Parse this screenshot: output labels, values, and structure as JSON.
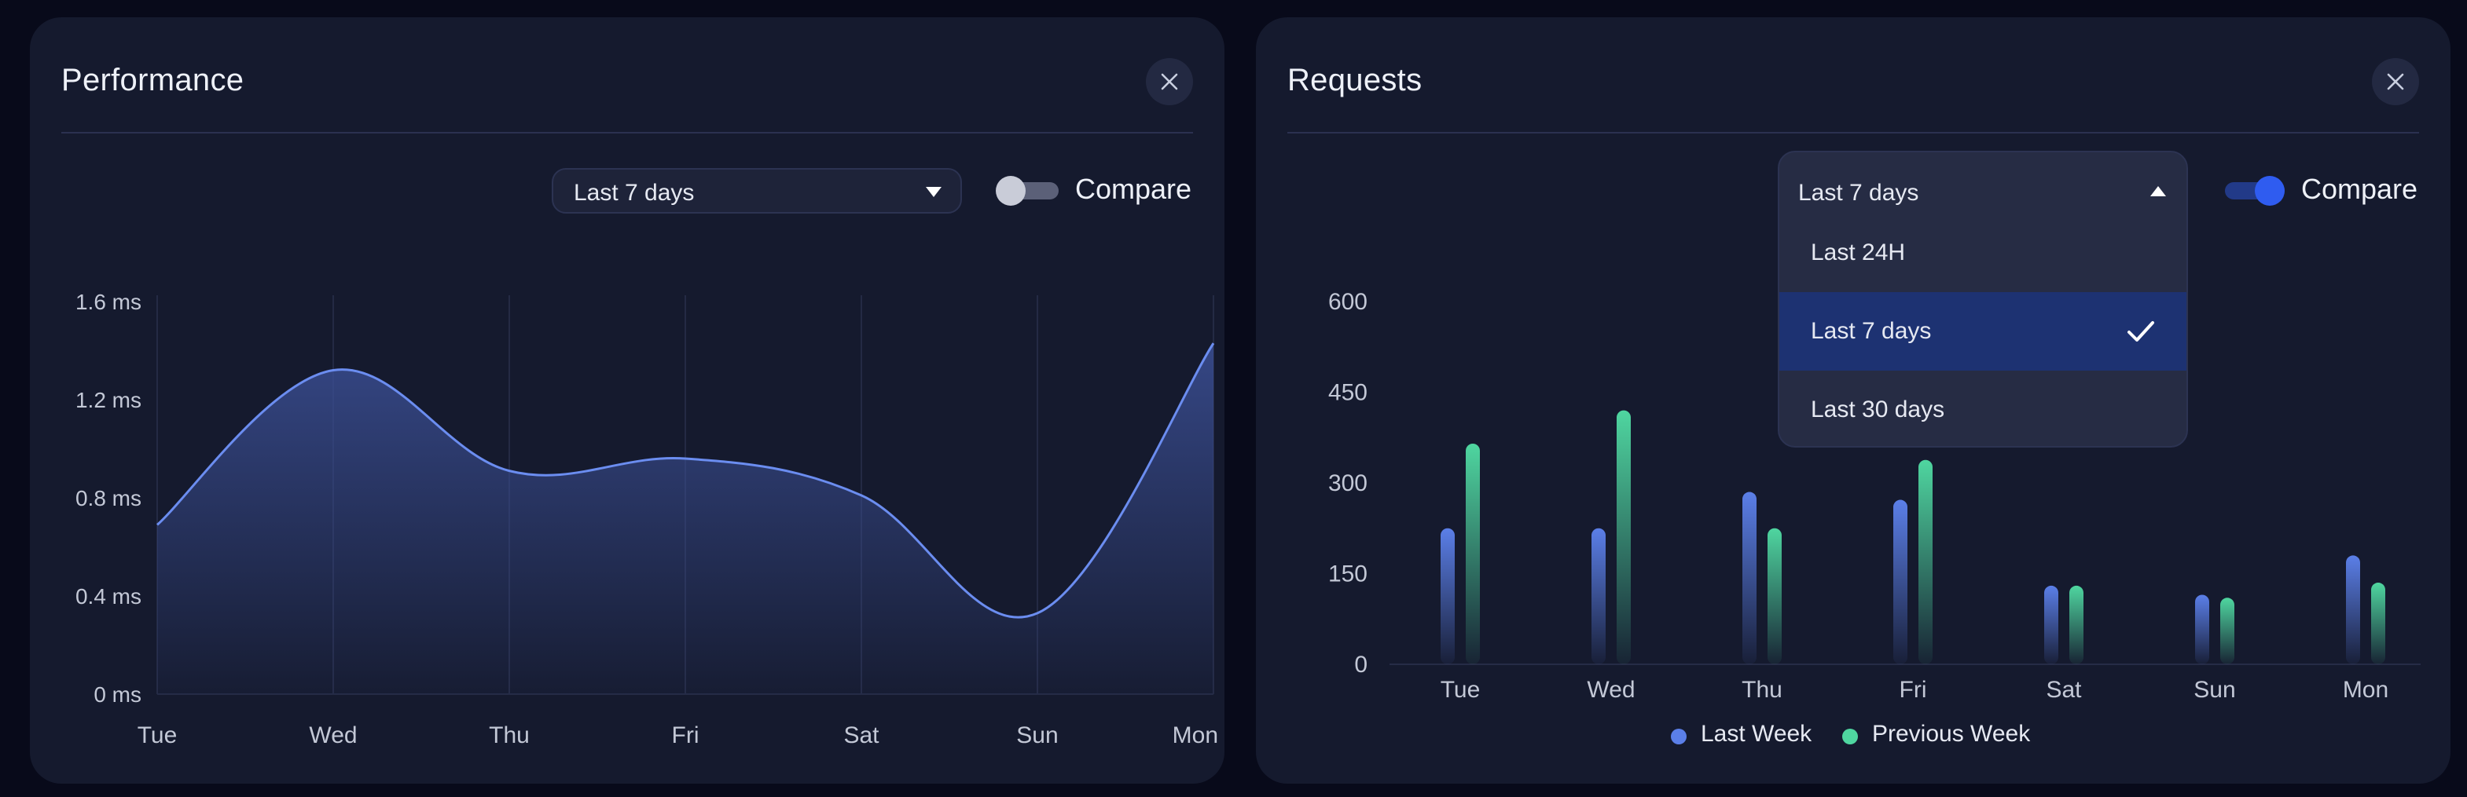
{
  "colors": {
    "card_bg": "#151a2e",
    "line_series": "#6b8df0",
    "last_week": "#5b7fe8",
    "previous_week": "#4fd6a0",
    "toggle_on": "#2f5cf0",
    "selected_option": "#1d3272"
  },
  "performance": {
    "title": "Performance",
    "range_select": {
      "value": "Last 7 days",
      "icon": "caret-down-icon"
    },
    "compare": {
      "label": "Compare",
      "enabled": false
    },
    "close_icon": "close-icon"
  },
  "requests": {
    "title": "Requests",
    "range_select": {
      "value": "Last 7 days",
      "open": true,
      "icon": "caret-up-icon",
      "options": [
        {
          "label": "Last 24H",
          "selected": false
        },
        {
          "label": "Last 7 days",
          "selected": true
        },
        {
          "label": "Last 30 days",
          "selected": false
        }
      ]
    },
    "compare": {
      "label": "Compare",
      "enabled": true
    },
    "close_icon": "close-icon"
  },
  "chart_data": [
    {
      "type": "area",
      "categories": [
        "Tue",
        "Wed",
        "Thu",
        "Fri",
        "Sat",
        "Sun",
        "Mon"
      ],
      "y_ticks": [
        "0 ms",
        "0.4 ms",
        "0.8 ms",
        "1.2 ms",
        "1.6 ms"
      ],
      "ylim": [
        0,
        1.6
      ],
      "series": [
        {
          "values": [
            0.69,
            1.32,
            0.91,
            0.96,
            0.81,
            0.33,
            1.43
          ]
        }
      ],
      "grid": "vertical",
      "title": "",
      "xlabel": "",
      "ylabel": ""
    },
    {
      "type": "bar",
      "categories": [
        "Tue",
        "Wed",
        "Thu",
        "Fri",
        "Sat",
        "Sun",
        "Mon"
      ],
      "y_ticks": [
        "0",
        "150",
        "300",
        "450",
        "600"
      ],
      "ylim": [
        0,
        600
      ],
      "series": [
        {
          "name": "Last Week",
          "values": [
            225,
            225,
            285,
            272,
            130,
            115,
            180
          ]
        },
        {
          "name": "Previous Week",
          "values": [
            365,
            420,
            225,
            338,
            130,
            110,
            135
          ]
        }
      ],
      "legend": "bottom-center",
      "grid": false,
      "title": "",
      "xlabel": "",
      "ylabel": ""
    }
  ]
}
